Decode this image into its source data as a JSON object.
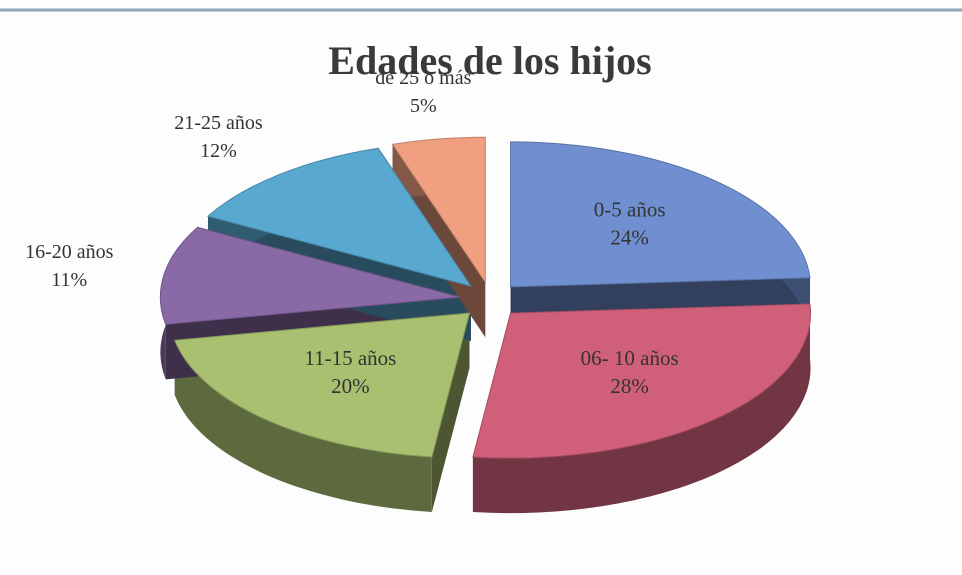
{
  "chart_data": {
    "type": "pie",
    "title": "Edades de los hijos",
    "categories": [
      "0-5 años",
      "06- 10 años",
      "11-15 años",
      "16-20 años",
      "21-25 años",
      "de 25 o más"
    ],
    "values": [
      24,
      28,
      20,
      11,
      12,
      5
    ],
    "value_labels": [
      "24%",
      "28%",
      "20%",
      "11%",
      "12%",
      "5%"
    ],
    "colors": [
      "#6f8fd0",
      "#d0607a",
      "#a8c070",
      "#8a6aa6",
      "#58a8d0",
      "#f0a080"
    ]
  }
}
